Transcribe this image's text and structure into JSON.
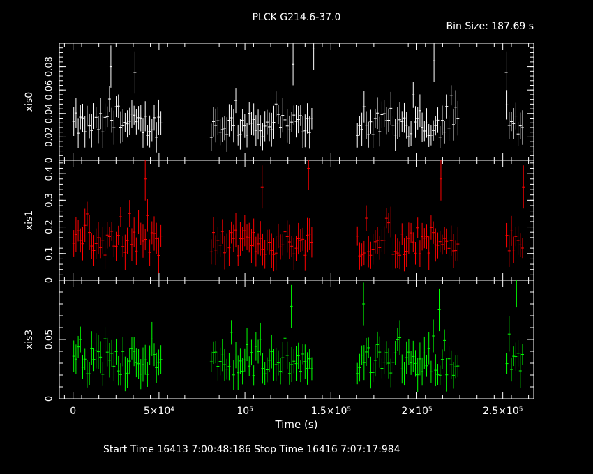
{
  "chart": {
    "title": "PLCK G214.6-37.0",
    "bin_size_text": "Bin Size: 187.69 s",
    "xlabel": "Time (s)",
    "footer": "Start Time 16413  7:00:48:186     Stop Time 16416  7:07:17:984"
  },
  "chart_data": [
    {
      "type": "scatter",
      "name": "xis0",
      "ylabel": "xis0",
      "color": "#ffffff",
      "xlim": [
        -8000,
        268000
      ],
      "ylim": [
        0,
        0.1
      ],
      "yticks": [
        0,
        0.02,
        0.04,
        0.06,
        0.08
      ],
      "ytick_labels": [
        "0",
        "0.02",
        "0.04",
        "0.06",
        "0.08"
      ],
      "segments": [
        [
          0,
          52000
        ],
        [
          80000,
          140000
        ],
        [
          165000,
          225000
        ],
        [
          252000,
          262000
        ]
      ],
      "typical_y": 0.03,
      "bin_size_s": 187.69,
      "notable_points": [
        {
          "x": 22000,
          "y": 0.08
        },
        {
          "x": 36000,
          "y": 0.075
        },
        {
          "x": 128000,
          "y": 0.082
        },
        {
          "x": 140000,
          "y": 0.095
        },
        {
          "x": 210000,
          "y": 0.085
        },
        {
          "x": 252000,
          "y": 0.075
        }
      ]
    },
    {
      "type": "scatter",
      "name": "xis1",
      "ylabel": "xis1",
      "color": "#ff0000",
      "xlim": [
        -8000,
        268000
      ],
      "ylim": [
        0,
        0.45
      ],
      "yticks": [
        0,
        0.1,
        0.2,
        0.3,
        0.4
      ],
      "ytick_labels": [
        "0",
        "0.1",
        "0.2",
        "0.3",
        "0.4"
      ],
      "segments": [
        [
          0,
          52000
        ],
        [
          80000,
          140000
        ],
        [
          165000,
          225000
        ],
        [
          252000,
          262000
        ]
      ],
      "typical_y": 0.14,
      "bin_size_s": 187.69,
      "notable_points": [
        {
          "x": 42000,
          "y": 0.38
        },
        {
          "x": 110000,
          "y": 0.35
        },
        {
          "x": 137000,
          "y": 0.42
        },
        {
          "x": 214000,
          "y": 0.38
        },
        {
          "x": 262000,
          "y": 0.35
        }
      ]
    },
    {
      "type": "scatter",
      "name": "xis3",
      "ylabel": "xis3",
      "color": "#00ff00",
      "xlim": [
        -8000,
        268000
      ],
      "ylim": [
        0,
        0.1
      ],
      "yticks": [
        0,
        0.05
      ],
      "ytick_labels": [
        "0",
        "0.05"
      ],
      "yminor": [
        0.01,
        0.02,
        0.03,
        0.04,
        0.06,
        0.07,
        0.08,
        0.09
      ],
      "segments": [
        [
          0,
          52000
        ],
        [
          80000,
          140000
        ],
        [
          165000,
          225000
        ],
        [
          252000,
          262000
        ]
      ],
      "typical_y": 0.03,
      "bin_size_s": 187.69,
      "notable_points": [
        {
          "x": 127000,
          "y": 0.078
        },
        {
          "x": 169000,
          "y": 0.08
        },
        {
          "x": 213000,
          "y": 0.075
        },
        {
          "x": 258000,
          "y": 0.095
        }
      ]
    }
  ],
  "xaxis": {
    "ticks": [
      0,
      50000,
      100000,
      150000,
      200000,
      250000
    ],
    "tick_labels": [
      "0",
      "5×10⁴",
      "10⁵",
      "1.5×10⁵",
      "2×10⁵",
      "2.5×10⁵"
    ]
  }
}
